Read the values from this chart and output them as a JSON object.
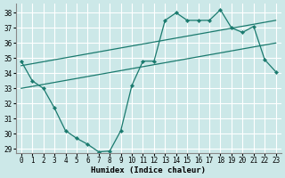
{
  "xlabel": "Humidex (Indice chaleur)",
  "xlim": [
    -0.5,
    23.5
  ],
  "ylim": [
    28.7,
    38.6
  ],
  "yticks": [
    29,
    30,
    31,
    32,
    33,
    34,
    35,
    36,
    37,
    38
  ],
  "xticks": [
    0,
    1,
    2,
    3,
    4,
    5,
    6,
    7,
    8,
    9,
    10,
    11,
    12,
    13,
    14,
    15,
    16,
    17,
    18,
    19,
    20,
    21,
    22,
    23
  ],
  "bg_color": "#cce8e8",
  "line_color": "#1a7a6e",
  "grid_color": "#ffffff",
  "series1_x": [
    0,
    1,
    2,
    3,
    4,
    5,
    6,
    7,
    8,
    9,
    10,
    11,
    12,
    13,
    14,
    15,
    16,
    17,
    18,
    19,
    20,
    21,
    22,
    23
  ],
  "series1_y": [
    34.8,
    33.5,
    33.0,
    31.7,
    30.2,
    29.7,
    29.3,
    28.8,
    28.85,
    30.2,
    33.2,
    34.8,
    34.8,
    37.5,
    38.0,
    37.5,
    37.5,
    37.5,
    38.2,
    37.0,
    36.7,
    37.1,
    34.9,
    34.1
  ],
  "series2_x": [
    0,
    23
  ],
  "series2_y": [
    33.0,
    36.0
  ],
  "series3_x": [
    0,
    23
  ],
  "series3_y": [
    34.5,
    37.5
  ]
}
